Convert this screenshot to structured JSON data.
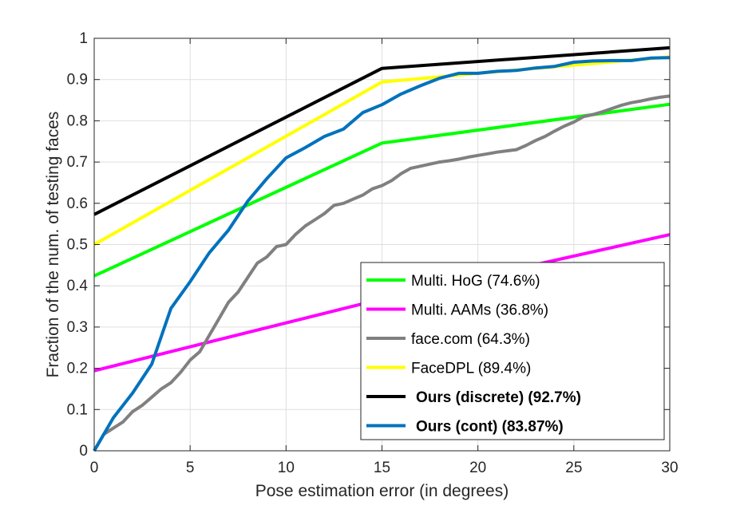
{
  "chart_data": {
    "type": "line",
    "xlabel": "Pose estimation error (in degrees)",
    "ylabel": "Fraction of the num. of testing faces",
    "xlim": [
      0,
      30
    ],
    "ylim": [
      0,
      1
    ],
    "xticks": [
      0,
      5,
      10,
      15,
      20,
      25,
      30
    ],
    "yticks": [
      0,
      0.1,
      0.2,
      0.3,
      0.4,
      0.5,
      0.6,
      0.7,
      0.8,
      0.9,
      1
    ],
    "grid": true,
    "legend_position": "bottom-right",
    "series": [
      {
        "name": "Multi. HoG (74.6%)",
        "color": "#00ff00",
        "bold": false,
        "x": [
          0,
          15,
          30
        ],
        "y": [
          0.424,
          0.746,
          0.84
        ]
      },
      {
        "name": "Multi. AAMs (36.8%)",
        "color": "#ff00ff",
        "bold": false,
        "x": [
          0,
          15,
          30
        ],
        "y": [
          0.194,
          0.368,
          0.524
        ]
      },
      {
        "name": "face.com (64.3%)",
        "color": "#808080",
        "bold": false,
        "x": [
          0,
          0.5,
          1,
          1.5,
          2,
          2.5,
          3,
          3.5,
          4,
          4.5,
          5,
          5.5,
          6,
          6.5,
          7,
          7.5,
          8,
          8.5,
          9,
          9.5,
          10,
          10.5,
          11,
          11.5,
          12,
          12.5,
          13,
          13.5,
          14,
          14.5,
          15,
          15.5,
          16,
          16.5,
          17,
          17.5,
          18,
          18.5,
          19,
          19.5,
          20,
          20.5,
          21,
          21.5,
          22,
          22.5,
          23,
          23.5,
          24,
          24.5,
          25,
          25.5,
          26,
          26.5,
          27,
          27.5,
          28,
          28.5,
          29,
          29.5,
          30
        ],
        "y": [
          0,
          0.04,
          0.055,
          0.07,
          0.095,
          0.11,
          0.13,
          0.15,
          0.165,
          0.19,
          0.22,
          0.24,
          0.28,
          0.32,
          0.36,
          0.385,
          0.42,
          0.455,
          0.47,
          0.495,
          0.5,
          0.525,
          0.545,
          0.56,
          0.575,
          0.595,
          0.6,
          0.61,
          0.62,
          0.635,
          0.643,
          0.655,
          0.672,
          0.685,
          0.69,
          0.695,
          0.7,
          0.703,
          0.707,
          0.712,
          0.716,
          0.72,
          0.724,
          0.727,
          0.73,
          0.74,
          0.752,
          0.762,
          0.775,
          0.787,
          0.797,
          0.81,
          0.815,
          0.822,
          0.83,
          0.838,
          0.844,
          0.848,
          0.853,
          0.857,
          0.86
        ]
      },
      {
        "name": "FaceDPL (89.4%)",
        "color": "#ffff00",
        "bold": false,
        "x": [
          0,
          15,
          20,
          25,
          30
        ],
        "y": [
          0.5,
          0.894,
          0.915,
          0.935,
          0.955
        ]
      },
      {
        "name": "Ours (discrete) (92.7%)",
        "color": "#000000",
        "bold": true,
        "x": [
          0,
          15,
          30
        ],
        "y": [
          0.573,
          0.927,
          0.977
        ]
      },
      {
        "name": "Ours (cont) (83.87%)",
        "color": "#0072bd",
        "bold": true,
        "x": [
          0,
          1,
          2,
          3,
          4,
          5,
          6,
          7,
          8,
          9,
          10,
          11,
          12,
          13,
          14,
          15,
          16,
          17,
          18,
          19,
          20,
          21,
          22,
          23,
          24,
          25,
          26,
          27,
          28,
          29,
          30
        ],
        "y": [
          0,
          0.08,
          0.14,
          0.21,
          0.345,
          0.41,
          0.48,
          0.535,
          0.605,
          0.66,
          0.71,
          0.735,
          0.762,
          0.78,
          0.82,
          0.839,
          0.865,
          0.885,
          0.903,
          0.915,
          0.915,
          0.92,
          0.922,
          0.928,
          0.932,
          0.942,
          0.945,
          0.946,
          0.946,
          0.952,
          0.953
        ]
      }
    ]
  }
}
